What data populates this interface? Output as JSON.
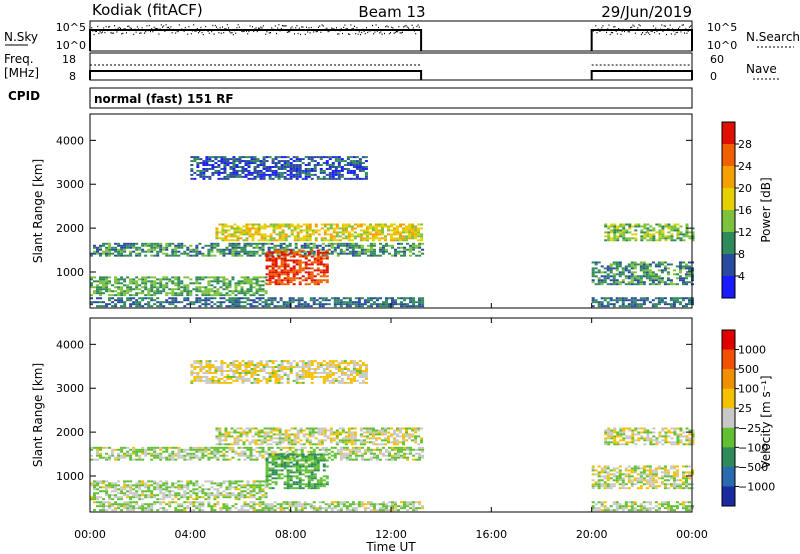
{
  "chart_data": {
    "type": "heatmap",
    "title": {
      "station": "Kodiak (fitACF)",
      "beam": "Beam 13",
      "date": "29/Jun/2019"
    },
    "cpid_label": "CPID",
    "cpid_value": "normal (fast) 151 RF",
    "x": {
      "label": "Time UT",
      "ticks": [
        "00:00",
        "04:00",
        "08:00",
        "12:00",
        "16:00",
        "20:00",
        "00:00"
      ],
      "range_hours": [
        0,
        24
      ]
    },
    "data_gap_hours": [
      13.2,
      20.0
    ],
    "strips": {
      "noise": {
        "left_label": "N.Sky",
        "right_label": "N.Search",
        "left_ticks": [
          "10^5",
          "10^0"
        ],
        "right_ticks": [
          "10^5",
          "10^0"
        ]
      },
      "freq": {
        "left_label_lines": [
          "Freq.",
          "[MHz]"
        ],
        "right_label": "Nave",
        "left_ticks": [
          "18",
          "8"
        ],
        "right_ticks": [
          "60",
          "0"
        ]
      }
    },
    "panels": [
      {
        "quantity": "power",
        "ylabel": "Slant Range [km]",
        "yticks": [
          1000,
          2000,
          3000,
          4000
        ],
        "ylim": [
          180,
          4600
        ],
        "colorbar": {
          "label": "Power [dB]",
          "ticks": [
            "4",
            "8",
            "12",
            "16",
            "20",
            "24",
            "28"
          ],
          "colors": [
            "#1a1aff",
            "#2a4aa0",
            "#2e8a5a",
            "#7cc23a",
            "#e6d000",
            "#f5a000",
            "#f06000",
            "#e01000"
          ]
        }
      },
      {
        "quantity": "velocity",
        "ylabel": "Slant Range [km]",
        "yticks": [
          1000,
          2000,
          3000,
          4000
        ],
        "ylim": [
          180,
          4600
        ],
        "colorbar": {
          "label": "Velocity [m s⁻¹]",
          "ticks": [
            "1000",
            "500",
            "100",
            "25",
            "−25",
            "−100",
            "−500",
            "−1000"
          ],
          "colors": [
            "#1a2aa0",
            "#2a6ab0",
            "#2e8a5a",
            "#60c030",
            "#c8c8c8",
            "#f5c000",
            "#f09000",
            "#f05000",
            "#e00000"
          ]
        }
      }
    ],
    "echo_regions": [
      {
        "t": [
          0.0,
          13.2
        ],
        "r": [
          1350,
          1650
        ],
        "power": 10,
        "velocity": 25
      },
      {
        "t": [
          5.0,
          13.2
        ],
        "r": [
          1700,
          2100
        ],
        "power": 18,
        "velocity": 0
      },
      {
        "t": [
          7.0,
          9.5
        ],
        "r": [
          700,
          1500
        ],
        "power": 28,
        "velocity": 100
      },
      {
        "t": [
          0.0,
          7.0
        ],
        "r": [
          450,
          900
        ],
        "power": 12,
        "velocity": 25
      },
      {
        "t": [
          4.0,
          11.0
        ],
        "r": [
          3100,
          3600
        ],
        "power": 6,
        "velocity": -25
      },
      {
        "t": [
          20.0,
          24.0
        ],
        "r": [
          700,
          1200
        ],
        "power": 10,
        "velocity": 0
      },
      {
        "t": [
          20.5,
          24.0
        ],
        "r": [
          1700,
          2100
        ],
        "power": 14,
        "velocity": 0
      },
      {
        "t": [
          0.0,
          13.2
        ],
        "r": [
          200,
          400
        ],
        "power": 8,
        "velocity": 25
      },
      {
        "t": [
          20.0,
          24.0
        ],
        "r": [
          200,
          400
        ],
        "power": 8,
        "velocity": 25
      }
    ]
  }
}
